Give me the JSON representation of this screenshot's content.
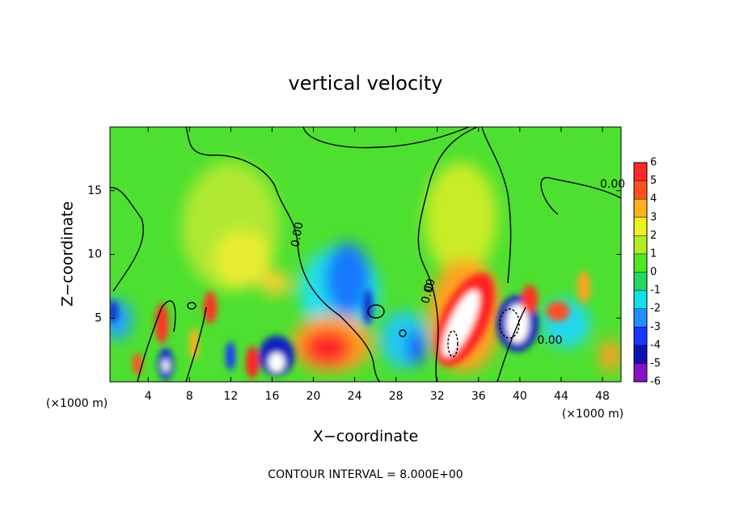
{
  "chart_data": {
    "type": "contour",
    "title": "vertical velocity",
    "xlabel": "X−coordinate",
    "ylabel": "Z−coordinate",
    "x_unit_label": "(×1000 m)",
    "y_unit_label": "(×1000 m)",
    "footnote": "CONTOUR INTERVAL = 8.000E+00",
    "contour_labels": [
      "0.00",
      "0.00",
      "0.00",
      "0.00"
    ],
    "xlim": [
      0.3,
      49.8
    ],
    "ylim": [
      0,
      20
    ],
    "xticks": [
      4,
      8,
      12,
      16,
      20,
      24,
      28,
      32,
      36,
      40,
      44,
      48
    ],
    "yticks": [
      5,
      10,
      15
    ],
    "colorbar": {
      "ticks": [
        -6,
        -5,
        -4,
        -3,
        -2,
        -1,
        0,
        1,
        2,
        3,
        4,
        5,
        6
      ],
      "colors": [
        "#8a10c8",
        "#1010b0",
        "#1838ff",
        "#1e90ff",
        "#10e0e8",
        "#22d860",
        "#50e620",
        "#b4ec20",
        "#f0f020",
        "#ffb020",
        "#ff5020",
        "#ff2828"
      ]
    }
  }
}
